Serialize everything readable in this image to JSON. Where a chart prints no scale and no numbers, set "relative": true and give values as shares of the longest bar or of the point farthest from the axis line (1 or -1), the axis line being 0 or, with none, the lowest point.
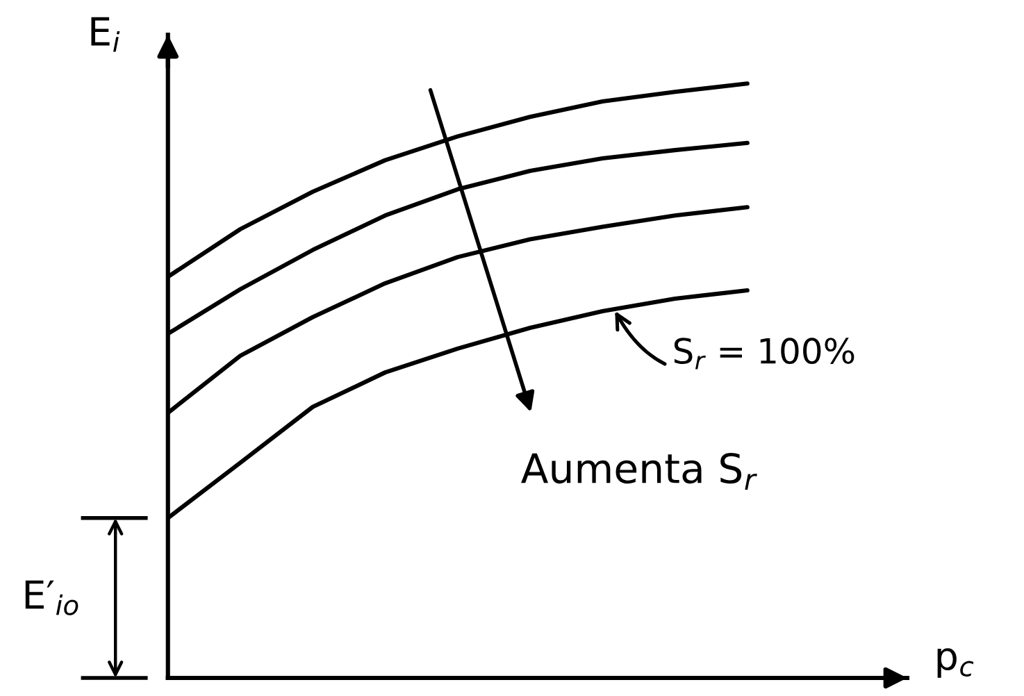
{
  "chart_data": {
    "type": "line",
    "relative": true,
    "xlabel": "p$_{c}$",
    "ylabel": "E$_{i}$",
    "line_style": "solid",
    "categories": [
      null,
      null,
      null,
      null,
      null,
      null,
      null,
      null,
      null
    ],
    "series": [
      {
        "color": "#000000",
        "values": [
          0.675,
          0.755,
          0.818,
          0.871,
          0.911,
          0.944,
          0.97,
          0.986,
          1.0
        ]
      },
      {
        "color": "#000000",
        "values": [
          0.579,
          0.654,
          0.72,
          0.778,
          0.822,
          0.853,
          0.874,
          0.888,
          0.9
        ]
      },
      {
        "color": "#000000",
        "values": [
          0.446,
          0.542,
          0.607,
          0.664,
          0.708,
          0.738,
          0.759,
          0.778,
          0.792
        ]
      },
      {
        "name": "S$_{r}$ = 100%",
        "color": "#000000",
        "values": [
          0.269,
          0.362,
          0.456,
          0.514,
          0.554,
          0.589,
          0.617,
          0.638,
          0.652
        ]
      }
    ],
    "annotations": [
      "Aumenta S$_{r}$",
      "E′$_{io}$"
    ]
  }
}
